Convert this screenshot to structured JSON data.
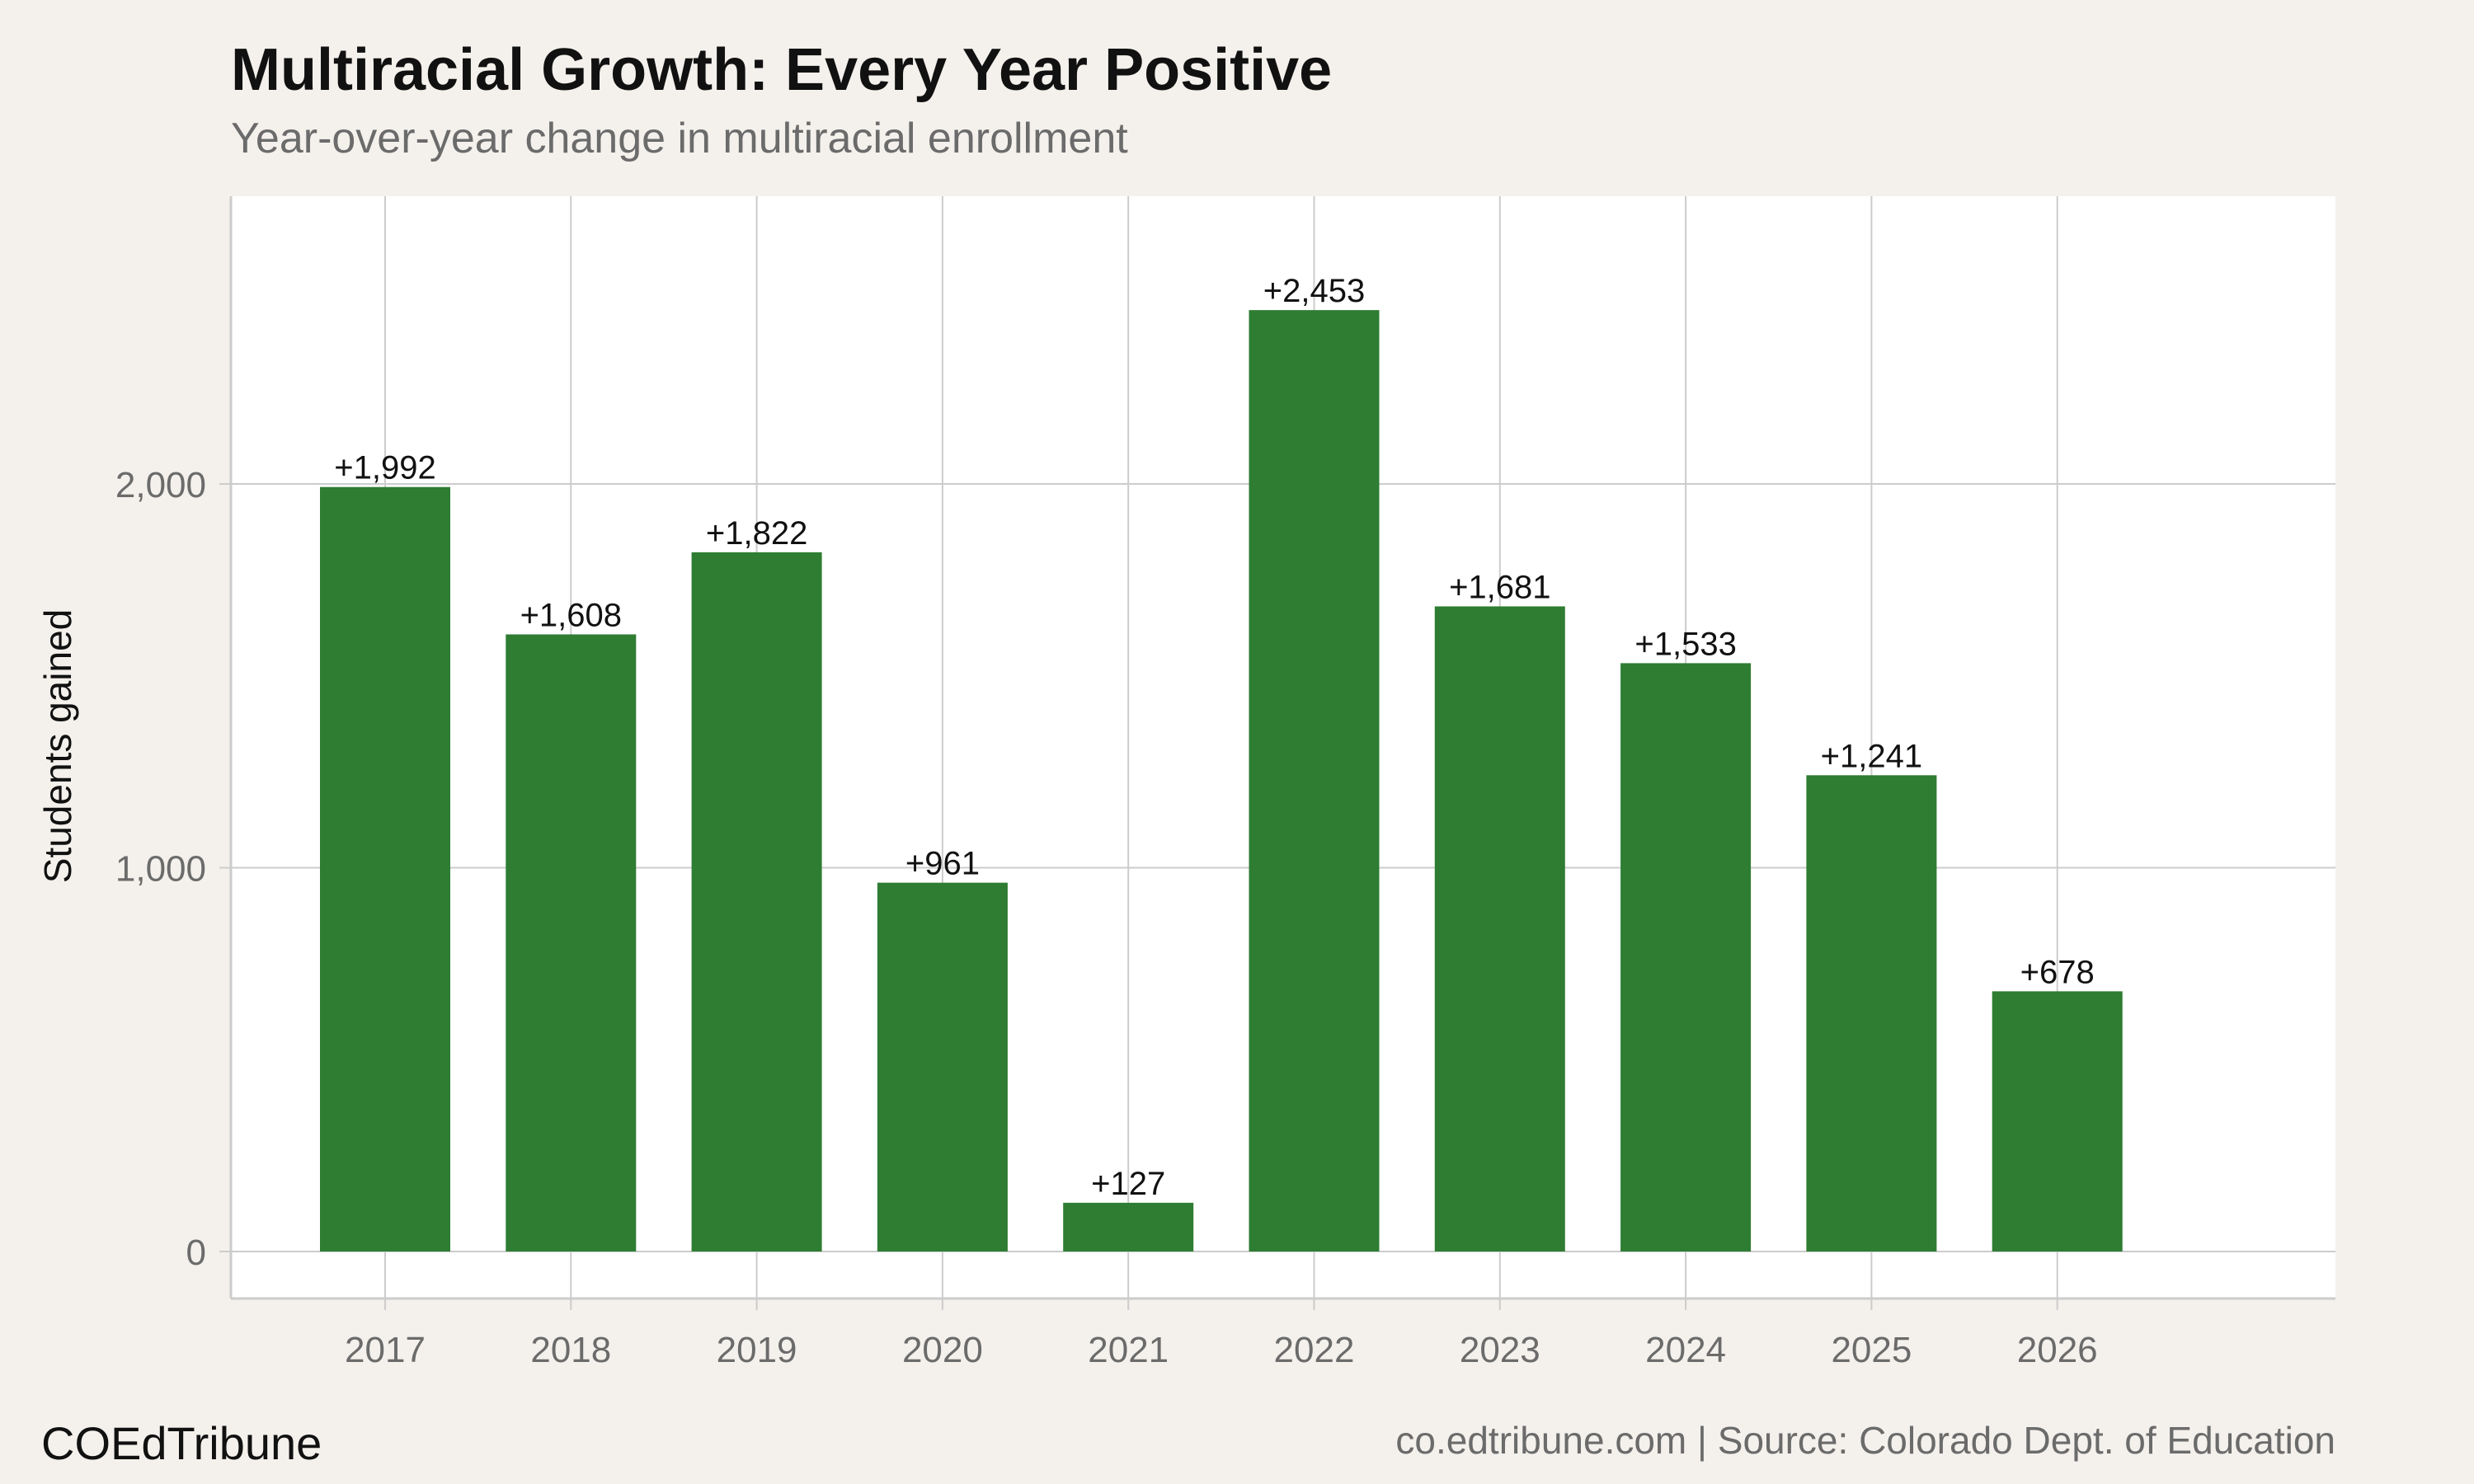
{
  "chart_data": {
    "type": "bar",
    "title": "Multiracial Growth: Every Year Positive",
    "subtitle": "Year-over-year change in multiracial enrollment",
    "xlabel": "",
    "ylabel": "Students gained",
    "categories": [
      "2017",
      "2018",
      "2019",
      "2020",
      "2021",
      "2022",
      "2023",
      "2024",
      "2025",
      "2026"
    ],
    "values": [
      1992,
      1608,
      1822,
      961,
      127,
      2453,
      1681,
      1533,
      1241,
      678
    ],
    "data_labels": [
      "+1,992",
      "+1,608",
      "+1,822",
      "+961",
      "+127",
      "+2,453",
      "+1,681",
      "+1,533",
      "+1,241",
      "+678"
    ],
    "y_ticks": [
      0,
      1000,
      2000
    ],
    "y_tick_labels": [
      "0",
      "1,000",
      "2,000"
    ],
    "ylim": [
      -120,
      2750
    ],
    "grid": true,
    "legend": "none",
    "colors": {
      "bar": "#2e7d32",
      "panel": "#ffffff",
      "background": "#f4f1ec",
      "grid": "#cccccc",
      "tick_text": "#6b6b6b"
    }
  },
  "footer": {
    "brand": "COEdTribune",
    "source": "co.edtribune.com | Source: Colorado Dept. of Education"
  }
}
